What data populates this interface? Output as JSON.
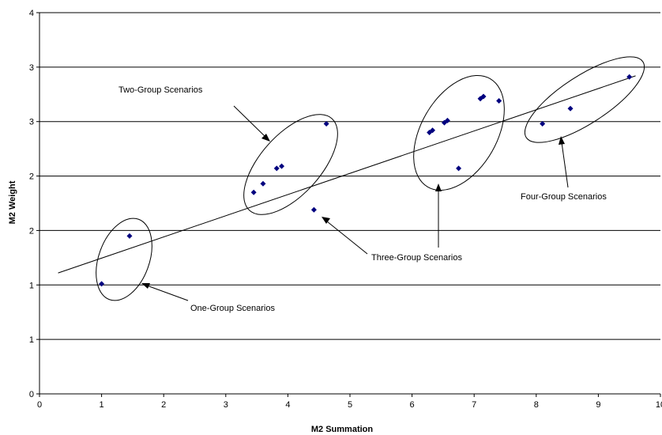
{
  "chart_data": {
    "type": "scatter",
    "title": "",
    "xlabel": "M2 Summation",
    "ylabel": "M2 Weight",
    "xlim": [
      0,
      10
    ],
    "ylim": [
      0,
      3.5
    ],
    "grid": "horizontal",
    "x_ticks": [
      "0",
      "1",
      "2",
      "3",
      "4",
      "5",
      "6",
      "7",
      "8",
      "9",
      "10"
    ],
    "y_ticks": [
      "0",
      "1",
      "1",
      "2",
      "2",
      "3",
      "3",
      "4"
    ],
    "points": [
      {
        "x": 1.0,
        "y": 1.01
      },
      {
        "x": 1.45,
        "y": 1.45
      },
      {
        "x": 3.45,
        "y": 1.85
      },
      {
        "x": 3.6,
        "y": 1.93
      },
      {
        "x": 3.82,
        "y": 2.07
      },
      {
        "x": 3.9,
        "y": 2.09
      },
      {
        "x": 4.42,
        "y": 1.69
      },
      {
        "x": 4.62,
        "y": 2.48
      },
      {
        "x": 6.28,
        "y": 2.4
      },
      {
        "x": 6.33,
        "y": 2.42
      },
      {
        "x": 6.52,
        "y": 2.49
      },
      {
        "x": 6.57,
        "y": 2.51
      },
      {
        "x": 6.75,
        "y": 2.07
      },
      {
        "x": 7.1,
        "y": 2.71
      },
      {
        "x": 7.15,
        "y": 2.73
      },
      {
        "x": 7.4,
        "y": 2.69
      },
      {
        "x": 8.1,
        "y": 2.48
      },
      {
        "x": 8.55,
        "y": 2.62
      },
      {
        "x": 9.5,
        "y": 2.91
      }
    ],
    "trendline": {
      "x": [
        0.3,
        9.6
      ],
      "y": [
        1.11,
        2.92
      ]
    },
    "annotations": [
      "One-Group Scenarios",
      "Two-Group Scenarios",
      "Three-Group Scenarios",
      "Four-Group Scenarios"
    ],
    "colors": {
      "point": "#00007f",
      "grid": "#000000",
      "line": "#000000"
    }
  }
}
